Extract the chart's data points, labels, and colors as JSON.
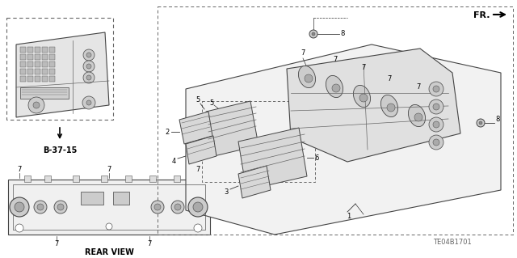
{
  "bg_color": "#ffffff",
  "fig_width": 6.4,
  "fig_height": 3.19,
  "dpi": 100,
  "title_code": "TE04B1701",
  "fr_label": "FR.",
  "rear_view_label": "REAR VIEW",
  "b_ref_label": "B-37-15",
  "line_color": "#000000",
  "text_color": "#000000",
  "gray_light": "#e8e8e8",
  "gray_med": "#cccccc",
  "gray_dark": "#888888",
  "outline_color": "#333333"
}
